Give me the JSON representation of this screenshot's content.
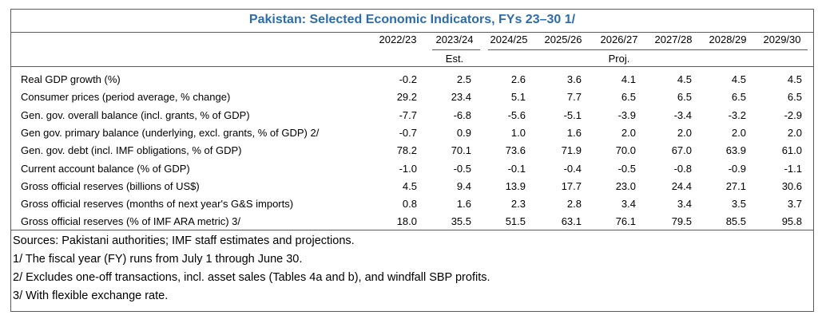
{
  "title": "Pakistan: Selected Economic Indicators, FYs 23–30 1/",
  "years": [
    "2022/23",
    "2023/24",
    "2024/25",
    "2025/26",
    "2026/27",
    "2027/28",
    "2028/29",
    "2029/30"
  ],
  "sublabels": {
    "est": "Est.",
    "proj": "Proj."
  },
  "rows": [
    {
      "label": "Real GDP growth (%)",
      "values": [
        "-0.2",
        "2.5",
        "2.6",
        "3.6",
        "4.1",
        "4.5",
        "4.5",
        "4.5"
      ]
    },
    {
      "label": "Consumer prices (period average, % change)",
      "values": [
        "29.2",
        "23.4",
        "5.1",
        "7.7",
        "6.5",
        "6.5",
        "6.5",
        "6.5"
      ]
    },
    {
      "label": "Gen. gov. overall balance (incl. grants, % of GDP)",
      "values": [
        "-7.7",
        "-6.8",
        "-5.6",
        "-5.1",
        "-3.9",
        "-3.4",
        "-3.2",
        "-2.9"
      ]
    },
    {
      "label": "Gen gov. primary balance (underlying, excl. grants, % of GDP) 2/",
      "values": [
        "-0.7",
        "0.9",
        "1.0",
        "1.6",
        "2.0",
        "2.0",
        "2.0",
        "2.0"
      ]
    },
    {
      "label": "Gen. gov. debt (incl. IMF obligations, % of GDP)",
      "values": [
        "78.2",
        "70.1",
        "73.6",
        "71.9",
        "70.0",
        "67.0",
        "63.9",
        "61.0"
      ]
    },
    {
      "label": "Current account balance (% of GDP)",
      "values": [
        "-1.0",
        "-0.5",
        "-0.1",
        "-0.4",
        "-0.5",
        "-0.8",
        "-0.9",
        "-1.1"
      ]
    },
    {
      "label": "Gross official reserves (billions of US$)",
      "values": [
        "4.5",
        "9.4",
        "13.9",
        "17.7",
        "23.0",
        "24.4",
        "27.1",
        "30.6"
      ]
    },
    {
      "label": "Gross official reserves (months of next year's G&S imports)",
      "values": [
        "0.8",
        "1.6",
        "2.3",
        "2.8",
        "3.4",
        "3.4",
        "3.5",
        "3.7"
      ]
    },
    {
      "label": "Gross official reserves (% of IMF ARA metric) 3/",
      "values": [
        "18.0",
        "35.5",
        "51.5",
        "63.1",
        "76.1",
        "79.5",
        "85.5",
        "95.8"
      ]
    }
  ],
  "notes": [
    "Sources: Pakistani authorities; IMF staff estimates and projections.",
    "1/ The fiscal year (FY) runs from July 1 through June 30.",
    "2/ Excludes one-off transactions, incl. asset sales (Tables 4a and b), and windfall SBP profits.",
    "3/ With flexible exchange rate."
  ]
}
